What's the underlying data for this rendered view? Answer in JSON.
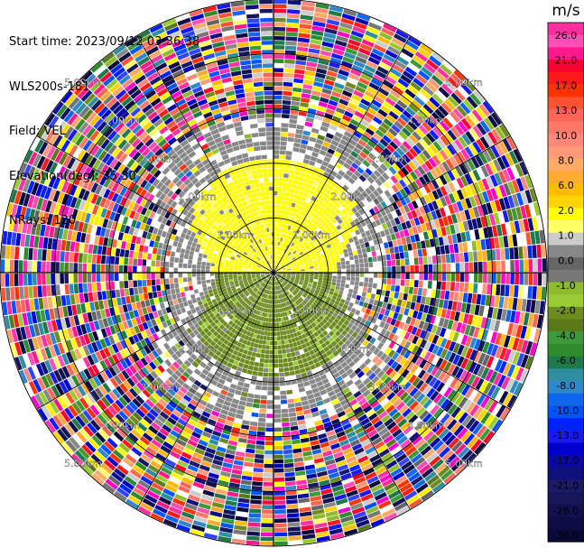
{
  "header": {
    "lines": [
      "Start time: 2023/09/12 03:36:38",
      "WLS200s-181",
      "Field: VEL",
      "Elevation(deg): 35.30",
      "NRays: 120"
    ]
  },
  "chart_data": {
    "type": "heatmap",
    "projection": "polar-ppi",
    "field": "VEL",
    "unit": "m/s",
    "n_rays": 120,
    "n_gates": 60,
    "range_max_km": 5.0,
    "range_rings_km": [
      1.0,
      2.0,
      3.0,
      4.0,
      5.0
    ],
    "ring_labels": [
      "1.00km",
      "2.00km",
      "3.00km",
      "4.00km",
      "5.00km"
    ],
    "spokes_deg": [
      0,
      30,
      60,
      90,
      120,
      150,
      180,
      210,
      240,
      270,
      300,
      330
    ],
    "near_field": {
      "north_half_velocity_ms": 2.0,
      "south_half_velocity_ms": -2.0,
      "valid_range_km": [
        0.1,
        2.4
      ]
    },
    "far_field": "noise (random velocities) beyond about 2.4 km",
    "colorbar": {
      "title": "m/s",
      "tick_labels": [
        "26.0",
        "21.0",
        "17.0",
        "13.0",
        "10.0",
        "8.0",
        "6.0",
        "2.0",
        "1.0",
        "0.0",
        "-1.0",
        "-2.0",
        "-4.0",
        "-6.0",
        "-8.0",
        "-10.0",
        "-13.0",
        "-17.0",
        "-21.0",
        "-26.0",
        "-30.0"
      ],
      "segments": [
        {
          "value": 30,
          "color": "#ff2fa0"
        },
        {
          "value": 26,
          "color": "#ff4fb6"
        },
        {
          "value": 24,
          "color": "#ff1a8c"
        },
        {
          "value": 21,
          "color": "#ff0033"
        },
        {
          "value": 19,
          "color": "#ff1a1a"
        },
        {
          "value": 17,
          "color": "#ff3300"
        },
        {
          "value": 15,
          "color": "#ff5233"
        },
        {
          "value": 13,
          "color": "#ff6655"
        },
        {
          "value": 11,
          "color": "#ff7766"
        },
        {
          "value": 10,
          "color": "#ff8877"
        },
        {
          "value": 9,
          "color": "#ff9977"
        },
        {
          "value": 8,
          "color": "#ffaa66"
        },
        {
          "value": 7,
          "color": "#ffaa33"
        },
        {
          "value": 6,
          "color": "#ffbb00"
        },
        {
          "value": 4,
          "color": "#ffd400"
        },
        {
          "value": 2,
          "color": "#ffff00"
        },
        {
          "value": 1.5,
          "color": "#ffff66"
        },
        {
          "value": 1,
          "color": "#cccccc"
        },
        {
          "value": 0.5,
          "color": "#888888"
        },
        {
          "value": 0,
          "color": "#666666"
        },
        {
          "value": -0.5,
          "color": "#777777"
        },
        {
          "value": -1,
          "color": "#8fbc2f"
        },
        {
          "value": -1.5,
          "color": "#99cc33"
        },
        {
          "value": -2,
          "color": "#6e8b1f"
        },
        {
          "value": -3,
          "color": "#5a7a1a"
        },
        {
          "value": -4,
          "color": "#3c9a3c"
        },
        {
          "value": -5,
          "color": "#2e8b2e"
        },
        {
          "value": -6,
          "color": "#1e7a4a"
        },
        {
          "value": -7,
          "color": "#2f8fa0"
        },
        {
          "value": -8,
          "color": "#2f88cc"
        },
        {
          "value": -9,
          "color": "#1166ee"
        },
        {
          "value": -10,
          "color": "#0055ff"
        },
        {
          "value": -11.5,
          "color": "#0022ff"
        },
        {
          "value": -13,
          "color": "#1a1aee"
        },
        {
          "value": -15,
          "color": "#0000cc"
        },
        {
          "value": -17,
          "color": "#0a0aa0"
        },
        {
          "value": -19,
          "color": "#10107a"
        },
        {
          "value": -21,
          "color": "#1a1a66"
        },
        {
          "value": -23.5,
          "color": "#16165a"
        },
        {
          "value": -26,
          "color": "#111150"
        },
        {
          "value": -28,
          "color": "#0d0d44"
        },
        {
          "value": -30,
          "color": "#0a0a3a"
        }
      ]
    }
  }
}
